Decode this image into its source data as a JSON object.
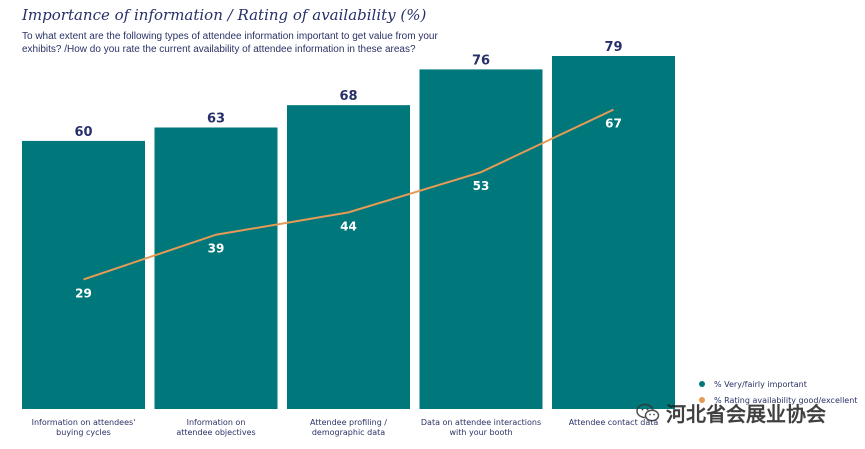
{
  "title": "Importance of information / Rating of availability (%)",
  "subtitle": "To what extent are the following types of attendee information important to get value from your exhibits? /How do you rate the current availability of attendee information in these areas?",
  "chart_data": {
    "type": "bar",
    "categories": [
      [
        "Information on attendees'",
        "buying cycles"
      ],
      [
        "Information on",
        "attendee objectives"
      ],
      [
        "Attendee profiling /",
        "demographic data"
      ],
      [
        "Data on attendee interactions",
        "with your booth"
      ],
      [
        "Attendee contact data"
      ]
    ],
    "series": [
      {
        "name": "% Very/fairly important",
        "type": "bar",
        "values": [
          60,
          63,
          68,
          76,
          79
        ]
      },
      {
        "name": "% Rating availability good/excellent",
        "type": "line",
        "values": [
          29,
          39,
          44,
          53,
          67
        ]
      }
    ],
    "ylim": [
      0,
      100
    ],
    "legend_position": "bottom-right",
    "grid": false
  },
  "colors": {
    "bar": "#00787b",
    "line": "#e59a55",
    "title": "#27306b",
    "legend_important": "#00787b",
    "legend_rating": "#e59a55"
  },
  "watermark": {
    "text": "河北省会展业协会",
    "icon": "wechat-icon"
  }
}
